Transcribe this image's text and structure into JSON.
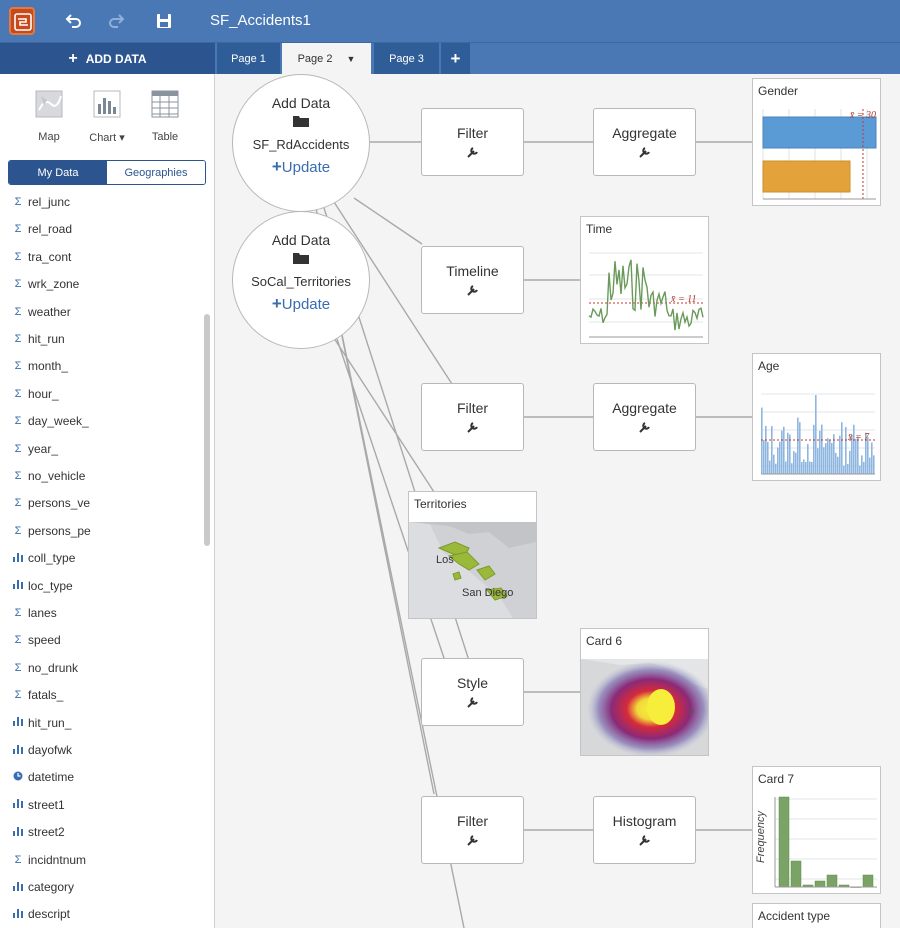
{
  "app": {
    "title": "SF_Accidents1",
    "icons": [
      "app-logo-icon",
      "undo-icon",
      "redo-icon",
      "save-icon"
    ]
  },
  "toolbar": {
    "add_data_label": "ADD DATA"
  },
  "pages": [
    {
      "label": "Page 1",
      "active": false
    },
    {
      "label": "Page 2",
      "active": true
    },
    {
      "label": "Page 3",
      "active": false
    }
  ],
  "add_page_label": "+",
  "sidebar": {
    "viz_buttons": [
      {
        "label": "Map",
        "icon": "map-icon"
      },
      {
        "label": "Chart ▾",
        "icon": "bar-chart-icon"
      },
      {
        "label": "Table",
        "icon": "table-icon"
      }
    ],
    "tabs": [
      {
        "label": "My Data",
        "active": true
      },
      {
        "label": "Geographies",
        "active": false
      }
    ],
    "fields": [
      {
        "name": "rel_junc",
        "type": "Σ"
      },
      {
        "name": "rel_road",
        "type": "Σ"
      },
      {
        "name": "tra_cont",
        "type": "Σ"
      },
      {
        "name": "wrk_zone",
        "type": "Σ"
      },
      {
        "name": "weather",
        "type": "Σ"
      },
      {
        "name": "hit_run",
        "type": "Σ"
      },
      {
        "name": "month_",
        "type": "Σ"
      },
      {
        "name": "hour_",
        "type": "Σ"
      },
      {
        "name": "day_week_",
        "type": "Σ"
      },
      {
        "name": "year_",
        "type": "Σ"
      },
      {
        "name": "no_vehicle",
        "type": "Σ"
      },
      {
        "name": "persons_ve",
        "type": "Σ"
      },
      {
        "name": "persons_pe",
        "type": "Σ"
      },
      {
        "name": "coll_type",
        "type": "bar"
      },
      {
        "name": "loc_type",
        "type": "bar"
      },
      {
        "name": "lanes",
        "type": "Σ"
      },
      {
        "name": "speed",
        "type": "Σ"
      },
      {
        "name": "no_drunk",
        "type": "Σ"
      },
      {
        "name": "fatals_",
        "type": "Σ"
      },
      {
        "name": "hit_run_",
        "type": "bar"
      },
      {
        "name": "dayofwk",
        "type": "bar"
      },
      {
        "name": "datetime",
        "type": "clock"
      },
      {
        "name": "street1",
        "type": "bar"
      },
      {
        "name": "street2",
        "type": "bar"
      },
      {
        "name": "incidntnum",
        "type": "Σ"
      },
      {
        "name": "category",
        "type": "bar"
      },
      {
        "name": "descript",
        "type": "bar"
      }
    ]
  },
  "canvas": {
    "datasets": [
      {
        "title": "Add Data",
        "name": "SF_RdAccidents",
        "action": "Update",
        "action_prefix": "+"
      },
      {
        "title": "Add Data",
        "name": "SoCal_Territories",
        "action": "Update",
        "action_prefix": "+"
      }
    ],
    "nodes": [
      {
        "id": "filter1",
        "label": "Filter"
      },
      {
        "id": "aggregate1",
        "label": "Aggregate"
      },
      {
        "id": "timeline",
        "label": "Timeline"
      },
      {
        "id": "filter2",
        "label": "Filter"
      },
      {
        "id": "aggregate2",
        "label": "Aggregate"
      },
      {
        "id": "style",
        "label": "Style"
      },
      {
        "id": "filter3",
        "label": "Filter"
      },
      {
        "id": "histogram",
        "label": "Histogram"
      }
    ],
    "cards": [
      {
        "id": "gender",
        "title": "Gender",
        "annotation": "x̄ = 30",
        "chart_type": "bar",
        "bar_colors": [
          "#5b9bd5",
          "#e3a33a"
        ]
      },
      {
        "id": "time",
        "title": "Time",
        "annotation": "x̄ = 11",
        "chart_type": "line",
        "line_color": "#6a9a5a"
      },
      {
        "id": "age",
        "title": "Age",
        "annotation": "x̄ = 7",
        "chart_type": "bar",
        "bar_color": "#8fb6e0"
      },
      {
        "id": "territories",
        "title": "Territories",
        "map_labels": [
          "Los",
          "San Diego"
        ],
        "region_color": "#9ab83a"
      },
      {
        "id": "card6",
        "title": "Card 6",
        "map_type": "heatmap"
      },
      {
        "id": "card7",
        "title": "Card 7",
        "ylabel": "Frequency",
        "chart_type": "bar",
        "bar_color": "#7aa365"
      },
      {
        "id": "accident_type",
        "title": "Accident type"
      }
    ]
  },
  "colors": {
    "topbar": "#4a78b5",
    "accent": "#2c5590",
    "link": "#3a6db0"
  }
}
